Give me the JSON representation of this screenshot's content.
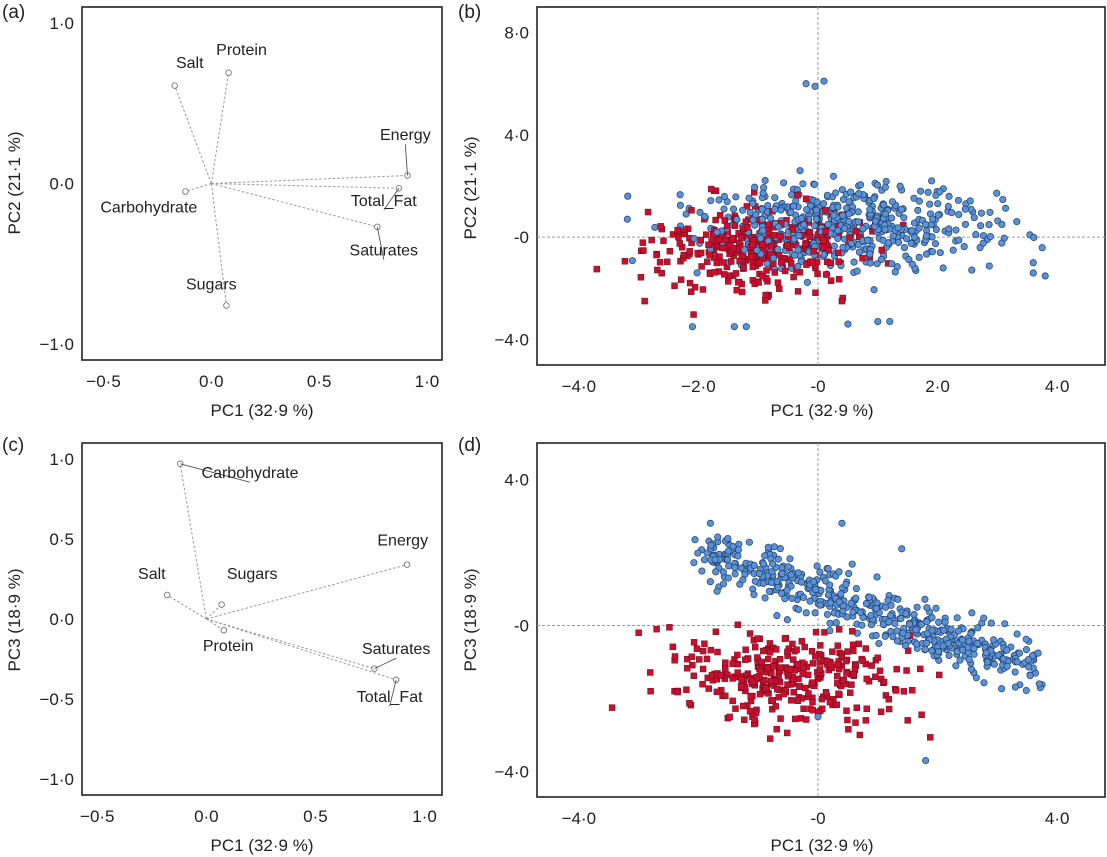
{
  "colors": {
    "blue": "#5b92d5",
    "red": "#c8102e",
    "frame": "#222222"
  },
  "chart_data": [
    {
      "id": "a",
      "type": "scatter",
      "panel_label": "(a)",
      "subtype": "loading-plot",
      "xlabel": "PC1 (32·9 %)",
      "ylabel": "PC2 (21·1 %)",
      "xlim": [
        -0.6,
        1.07
      ],
      "ylim": [
        -1.1,
        1.1
      ],
      "xticks": [
        {
          "v": -0.5,
          "label": "−0·5"
        },
        {
          "v": 0.0,
          "label": "0·0"
        },
        {
          "v": 0.5,
          "label": "0·5"
        },
        {
          "v": 1.0,
          "label": "1·0"
        }
      ],
      "yticks": [
        {
          "v": 1.0,
          "label": "1·0"
        },
        {
          "v": 0.0,
          "label": "0·0"
        },
        {
          "v": -1.0,
          "label": "−1·0"
        }
      ],
      "vectors": [
        {
          "name": "Salt",
          "x": -0.17,
          "y": 0.61,
          "lx": -0.1,
          "ly": 0.72,
          "leader": false
        },
        {
          "name": "Protein",
          "x": 0.08,
          "y": 0.69,
          "lx": 0.14,
          "ly": 0.8,
          "leader": false
        },
        {
          "name": "Energy",
          "x": 0.91,
          "y": 0.05,
          "lx": 0.9,
          "ly": 0.27,
          "leader": true
        },
        {
          "name": "Carbohydrate",
          "x": -0.12,
          "y": -0.05,
          "lx": -0.29,
          "ly": -0.18,
          "leader": false
        },
        {
          "name": "Total_Fat",
          "x": 0.87,
          "y": -0.03,
          "lx": 0.8,
          "ly": -0.14,
          "leader": true
        },
        {
          "name": "Saturates",
          "x": 0.77,
          "y": -0.27,
          "lx": 0.8,
          "ly": -0.45,
          "leader": true
        },
        {
          "name": "Sugars",
          "x": 0.07,
          "y": -0.76,
          "lx": 0.0,
          "ly": -0.66,
          "leader": false
        }
      ]
    },
    {
      "id": "b",
      "type": "scatter",
      "panel_label": "(b)",
      "xlabel": "PC1 (32·9 %)",
      "ylabel": "PC2 (21·1 %)",
      "xlim": [
        -4.7,
        4.8
      ],
      "ylim": [
        -5.0,
        9.0
      ],
      "xticks": [
        {
          "v": -4,
          "label": "−4·0"
        },
        {
          "v": -2,
          "label": "−2·0"
        },
        {
          "v": 0,
          "label": "-0"
        },
        {
          "v": 2,
          "label": "2·0"
        },
        {
          "v": 4,
          "label": "4·0"
        }
      ],
      "yticks": [
        {
          "v": 8,
          "label": "8·0"
        },
        {
          "v": 4,
          "label": "4·0"
        },
        {
          "v": 0,
          "label": "-0"
        },
        {
          "v": -4,
          "label": "−4·0"
        }
      ],
      "series": [
        {
          "name": "blue",
          "marker": "circle",
          "color": "#5b92d5",
          "center": [
            0.4,
            0.4
          ],
          "sd": [
            1.2,
            0.8
          ],
          "count": 520,
          "extra": [
            [
              -0.2,
              6.0
            ],
            [
              -0.05,
              5.9
            ],
            [
              0.1,
              6.1
            ],
            [
              1.2,
              -3.3
            ],
            [
              1.0,
              -3.3
            ],
            [
              -1.4,
              -3.5
            ],
            [
              -1.2,
              -3.5
            ],
            [
              -2.1,
              -3.5
            ],
            [
              3.6,
              -1.0
            ],
            [
              3.6,
              -1.4
            ],
            [
              1.9,
              2.2
            ],
            [
              -0.3,
              2.6
            ],
            [
              0.5,
              -3.4
            ]
          ]
        },
        {
          "name": "red",
          "marker": "square",
          "color": "#c8102e",
          "center": [
            -1.0,
            -0.5
          ],
          "sd": [
            0.9,
            0.8
          ],
          "count": 330,
          "extra": [
            [
              -2.9,
              -2.5
            ],
            [
              -2.7,
              -0.7
            ],
            [
              -2.4,
              -1.9
            ],
            [
              -1.9,
              0.7
            ],
            [
              0.4,
              -2.5
            ],
            [
              -0.2,
              1.5
            ]
          ]
        }
      ]
    },
    {
      "id": "c",
      "type": "scatter",
      "panel_label": "(c)",
      "subtype": "loading-plot",
      "xlabel": "PC1 (32·9 %)",
      "ylabel": "PC3 (18·9 %)",
      "xlim": [
        -0.57,
        1.08
      ],
      "ylim": [
        -1.1,
        1.1
      ],
      "xticks": [
        {
          "v": -0.5,
          "label": "−0·5"
        },
        {
          "v": 0.0,
          "label": "0·0"
        },
        {
          "v": 0.5,
          "label": "0·5"
        },
        {
          "v": 1.0,
          "label": "1·0"
        }
      ],
      "yticks": [
        {
          "v": 1.0,
          "label": "1·0"
        },
        {
          "v": 0.5,
          "label": "0·5"
        },
        {
          "v": 0.0,
          "label": "0·0"
        },
        {
          "v": -0.5,
          "label": "−0·5"
        },
        {
          "v": -1.0,
          "label": "−1·0"
        }
      ],
      "vectors": [
        {
          "name": "Carbohydrate",
          "x": -0.12,
          "y": 0.97,
          "lx": 0.2,
          "ly": 0.88,
          "leader": true
        },
        {
          "name": "Energy",
          "x": 0.92,
          "y": 0.34,
          "lx": 0.9,
          "ly": 0.46,
          "leader": false
        },
        {
          "name": "Salt",
          "x": -0.18,
          "y": 0.15,
          "lx": -0.25,
          "ly": 0.25,
          "leader": false
        },
        {
          "name": "Sugars",
          "x": 0.07,
          "y": 0.09,
          "lx": 0.21,
          "ly": 0.25,
          "leader": false
        },
        {
          "name": "Protein",
          "x": 0.08,
          "y": -0.07,
          "lx": 0.1,
          "ly": -0.2,
          "leader": false
        },
        {
          "name": "Saturates",
          "x": 0.77,
          "y": -0.31,
          "lx": 0.87,
          "ly": -0.22,
          "leader": true
        },
        {
          "name": "Total_Fat",
          "x": 0.87,
          "y": -0.38,
          "lx": 0.84,
          "ly": -0.52,
          "leader": true
        }
      ]
    },
    {
      "id": "d",
      "type": "scatter",
      "panel_label": "(d)",
      "xlabel": "PC1 (32·9 %)",
      "ylabel": "PC3 (18·9 %)",
      "xlim": [
        -4.7,
        4.8
      ],
      "ylim": [
        -4.7,
        5.0
      ],
      "xticks": [
        {
          "v": -4,
          "label": "−4·0"
        },
        {
          "v": 0,
          "label": "-0"
        },
        {
          "v": 4,
          "label": "4·0"
        }
      ],
      "yticks": [
        {
          "v": 4,
          "label": "4·0"
        },
        {
          "v": 0,
          "label": "-0"
        },
        {
          "v": -4,
          "label": "−4·0"
        }
      ],
      "series": [
        {
          "name": "blue",
          "marker": "circle",
          "color": "#5b92d5",
          "line": [
            [
              -1.8,
              2.0
            ],
            [
              3.6,
              -1.2
            ]
          ],
          "sd": [
            1.1,
            0.35
          ],
          "count": 520,
          "extra": [
            [
              -1.8,
              2.8
            ],
            [
              0.4,
              2.8
            ],
            [
              1.4,
              2.1
            ],
            [
              -1.9,
              1.8
            ],
            [
              -1.8,
              1.2
            ],
            [
              3.7,
              -1.6
            ],
            [
              3.6,
              -0.9
            ],
            [
              1.8,
              -3.7
            ],
            [
              0.0,
              -2.5
            ],
            [
              -1.5,
              1.3
            ]
          ]
        },
        {
          "name": "red",
          "marker": "square",
          "color": "#c8102e",
          "center": [
            -0.5,
            -1.4
          ],
          "sd": [
            0.9,
            0.55
          ],
          "count": 330,
          "extra": [
            [
              -3.0,
              -0.2
            ],
            [
              -2.8,
              -1.8
            ],
            [
              -2.4,
              -1.8
            ],
            [
              -2.7,
              -0.1
            ],
            [
              1.5,
              -2.6
            ],
            [
              0.8,
              -2.6
            ],
            [
              -0.8,
              -3.1
            ],
            [
              0.7,
              -3.0
            ],
            [
              0.2,
              -2.1
            ],
            [
              -1.9,
              -0.5
            ]
          ]
        }
      ]
    }
  ]
}
